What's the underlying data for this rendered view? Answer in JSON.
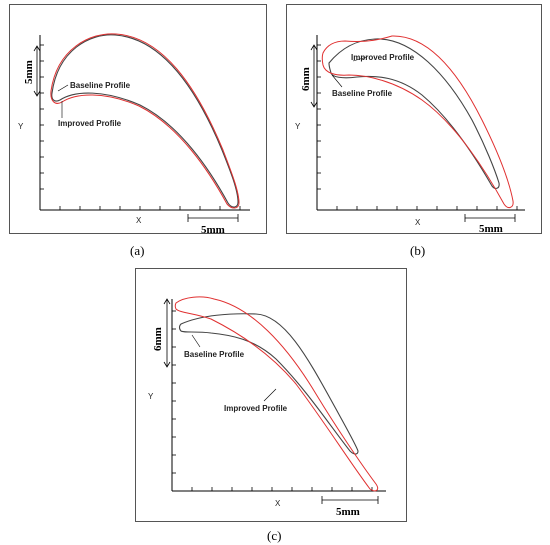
{
  "panels": [
    {
      "caption": "(a)",
      "y_label": "Y",
      "x_label": "X",
      "vertical_scale": "5mm",
      "horizontal_scale": "5mm",
      "labels": [
        "Baseline Profile",
        "Improved Profile"
      ],
      "colors": {
        "baseline": "#444444",
        "improved": "#e03030"
      }
    },
    {
      "caption": "(b)",
      "y_label": "Y",
      "x_label": "X",
      "vertical_scale": "6mm",
      "horizontal_scale": "5mm",
      "labels": [
        "Improved Profile",
        "Baseline Profile"
      ],
      "colors": {
        "baseline": "#444444",
        "improved": "#e03030"
      }
    },
    {
      "caption": "(c)",
      "y_label": "Y",
      "x_label": "X",
      "vertical_scale": "6mm",
      "horizontal_scale": "5mm",
      "labels": [
        "Baseline Profile",
        "Improved Profile"
      ],
      "colors": {
        "baseline": "#444444",
        "improved": "#e03030"
      }
    }
  ]
}
